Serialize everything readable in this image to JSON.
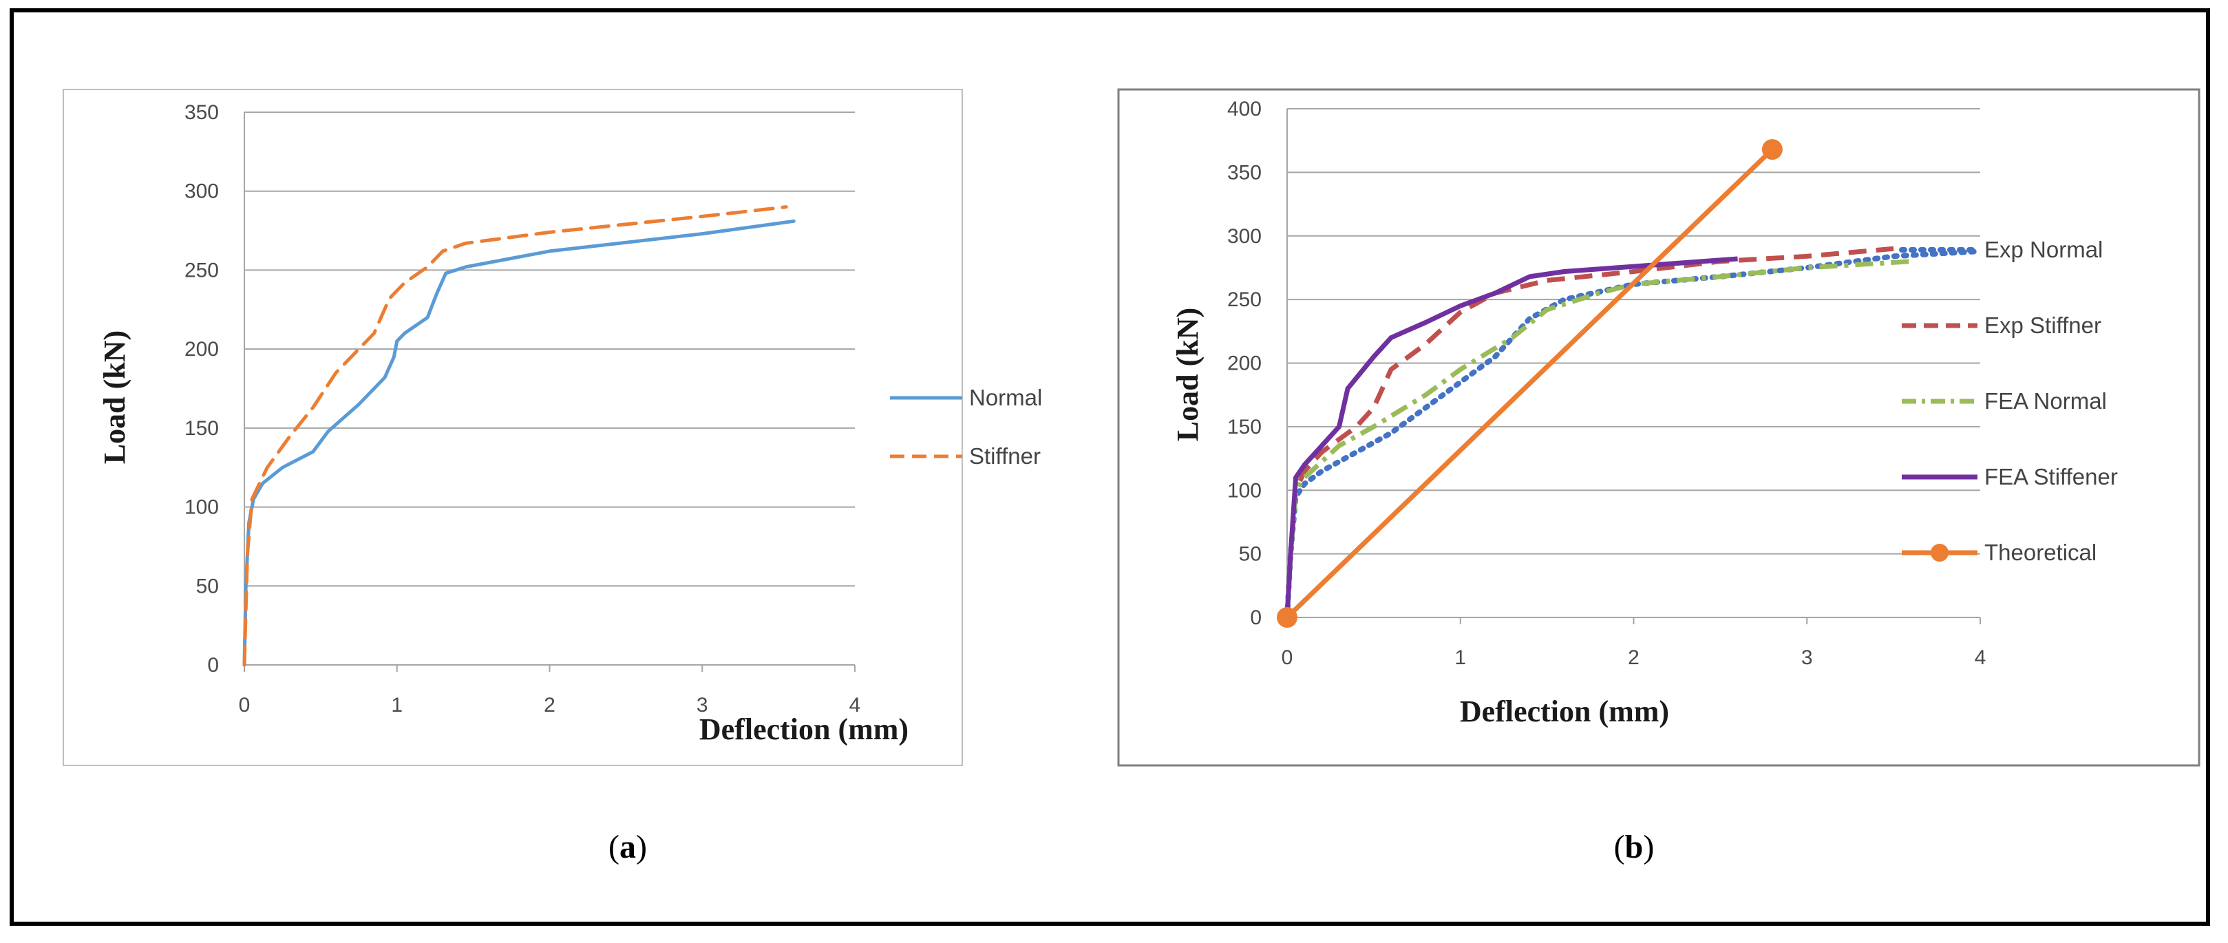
{
  "chart_data": [
    {
      "type": "line",
      "panel": "a",
      "title": "",
      "xlabel": "Deflection (mm)",
      "ylabel": "Load (kN)",
      "xlim": [
        0,
        4
      ],
      "ylim": [
        0,
        350
      ],
      "xticks": [
        "0",
        "1",
        "2",
        "3",
        "4"
      ],
      "yticks": [
        "0",
        "50",
        "100",
        "150",
        "200",
        "250",
        "300",
        "350"
      ],
      "grid": "horizontal",
      "legend_position": "right",
      "colors": {
        "Normal": "#5b9bd5",
        "Stiffner": "#ed7d31"
      },
      "series": [
        {
          "name": "Normal",
          "style": "solid",
          "x": [
            0,
            0.01,
            0.03,
            0.06,
            0.12,
            0.25,
            0.45,
            0.55,
            0.75,
            0.92,
            0.98,
            1.0,
            1.05,
            1.2,
            1.26,
            1.32,
            1.45,
            2.0,
            3.0,
            3.6
          ],
          "y": [
            0,
            50,
            90,
            105,
            115,
            125,
            135,
            148,
            165,
            182,
            195,
            205,
            210,
            220,
            235,
            248,
            252,
            262,
            273,
            281
          ]
        },
        {
          "name": "Stiffner",
          "style": "dashed",
          "x": [
            0,
            0.02,
            0.05,
            0.15,
            0.3,
            0.45,
            0.6,
            0.75,
            0.85,
            0.95,
            1.05,
            1.2,
            1.3,
            1.45,
            2.0,
            3.0,
            3.55
          ],
          "y": [
            0,
            70,
            105,
            125,
            145,
            163,
            185,
            200,
            210,
            232,
            242,
            252,
            262,
            267,
            274,
            284,
            290
          ]
        }
      ],
      "caption": "a"
    },
    {
      "type": "line",
      "panel": "b",
      "title": "",
      "xlabel": "Deflection (mm)",
      "ylabel": "Load (kN)",
      "xlim": [
        0,
        4
      ],
      "ylim": [
        0,
        400
      ],
      "xticks": [
        "0",
        "1",
        "2",
        "3",
        "4"
      ],
      "yticks": [
        "0",
        "50",
        "100",
        "150",
        "200",
        "250",
        "300",
        "350",
        "400"
      ],
      "grid": "horizontal",
      "legend_position": "right",
      "colors": {
        "Exp Normal": "#4472c4",
        "Exp Stiffner": "#c0504d",
        "FEA Normal": "#9bbb59",
        "FEA Stiffener": "#7030a0",
        "Theoretical": "#ed7d31"
      },
      "series": [
        {
          "name": "Exp Normal",
          "style": "dotted",
          "x": [
            0,
            0.02,
            0.05,
            0.1,
            0.2,
            0.4,
            0.6,
            0.8,
            1.0,
            1.2,
            1.4,
            1.6,
            2.0,
            2.5,
            3.0,
            3.5,
            4.0
          ],
          "y": [
            0,
            50,
            95,
            105,
            115,
            130,
            145,
            165,
            185,
            205,
            235,
            250,
            262,
            268,
            275,
            284,
            288
          ]
        },
        {
          "name": "Exp Stiffner",
          "style": "dashed",
          "x": [
            0,
            0.02,
            0.05,
            0.1,
            0.2,
            0.4,
            0.5,
            0.6,
            0.8,
            1.0,
            1.2,
            1.5,
            2.0,
            2.5,
            3.0,
            3.5
          ],
          "y": [
            0,
            50,
            100,
            115,
            130,
            150,
            165,
            195,
            215,
            240,
            255,
            265,
            272,
            280,
            284,
            290
          ]
        },
        {
          "name": "FEA Normal",
          "style": "dashdot",
          "x": [
            0,
            0.02,
            0.05,
            0.1,
            0.3,
            0.5,
            0.8,
            1.0,
            1.3,
            1.5,
            1.8,
            2.0,
            2.5,
            3.0,
            3.6
          ],
          "y": [
            0,
            50,
            100,
            110,
            135,
            150,
            175,
            195,
            220,
            242,
            255,
            262,
            268,
            275,
            280
          ]
        },
        {
          "name": "FEA Stiffener",
          "style": "solid",
          "x": [
            0,
            0.02,
            0.05,
            0.1,
            0.2,
            0.3,
            0.35,
            0.5,
            0.6,
            0.8,
            1.0,
            1.2,
            1.4,
            1.6,
            2.0,
            2.6
          ],
          "y": [
            0,
            50,
            110,
            120,
            135,
            150,
            180,
            205,
            220,
            232,
            245,
            255,
            268,
            272,
            276,
            282
          ]
        },
        {
          "name": "Theoretical",
          "style": "solid-markers",
          "x": [
            0,
            2.8
          ],
          "y": [
            0,
            368
          ]
        }
      ],
      "caption": "b"
    }
  ]
}
